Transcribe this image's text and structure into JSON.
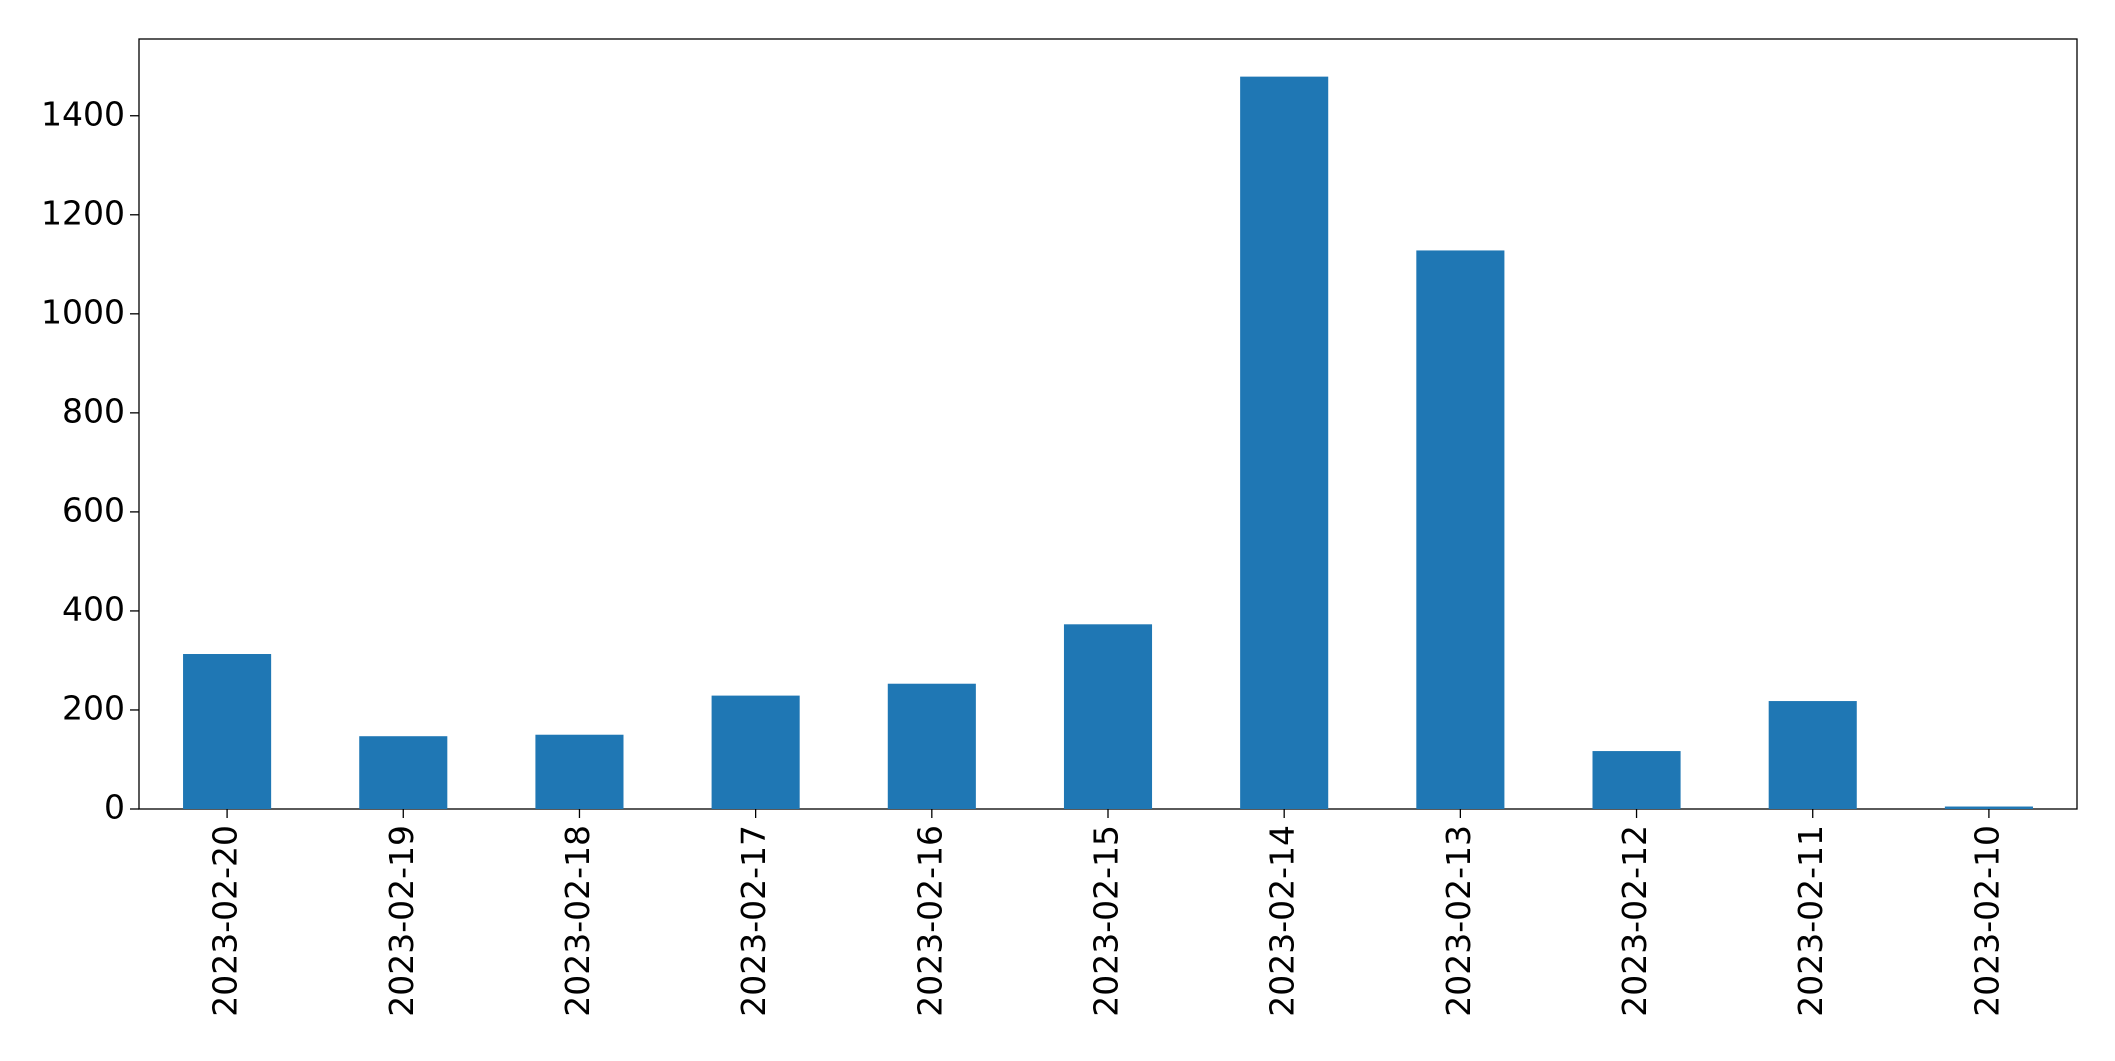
{
  "chart_data": {
    "type": "bar",
    "categories": [
      "2023-02-20",
      "2023-02-19",
      "2023-02-18",
      "2023-02-17",
      "2023-02-16",
      "2023-02-15",
      "2023-02-14",
      "2023-02-13",
      "2023-02-12",
      "2023-02-11",
      "2023-02-10"
    ],
    "values": [
      313,
      147,
      150,
      229,
      253,
      373,
      1479,
      1128,
      117,
      218,
      5
    ],
    "color": "#1f77b4",
    "ylim": [
      0,
      1555
    ],
    "yticks": [
      0,
      200,
      400,
      600,
      800,
      1000,
      1200,
      1400
    ],
    "grid": false
  }
}
